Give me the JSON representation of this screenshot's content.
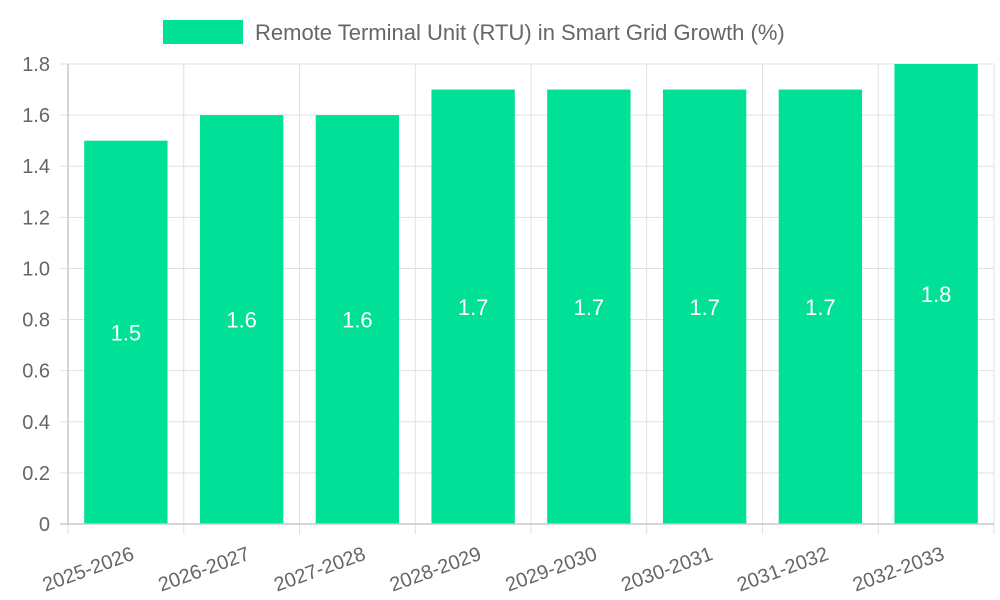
{
  "chart_data": {
    "type": "bar",
    "categories": [
      "2025-2026",
      "2026-2027",
      "2027-2028",
      "2028-2029",
      "2029-2030",
      "2030-2031",
      "2031-2032",
      "2032-2033"
    ],
    "series": [
      {
        "name": "Remote Terminal Unit (RTU) in Smart Grid Growth (%)",
        "values": [
          1.5,
          1.6,
          1.6,
          1.7,
          1.7,
          1.7,
          1.7,
          1.8
        ],
        "color": "#00e096"
      }
    ],
    "data_labels": [
      "1.5",
      "1.6",
      "1.6",
      "1.7",
      "1.7",
      "1.7",
      "1.7",
      "1.8"
    ],
    "ylim": [
      0,
      1.8
    ],
    "y_ticks": [
      "0",
      "0.2",
      "0.4",
      "0.6",
      "0.8",
      "1.0",
      "1.2",
      "1.4",
      "1.6",
      "1.8"
    ],
    "grid": true,
    "legend_position": "top-center"
  }
}
